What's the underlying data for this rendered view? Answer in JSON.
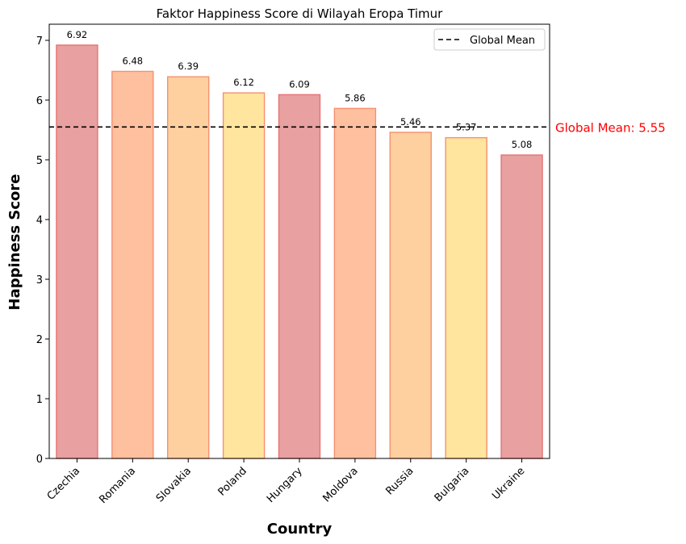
{
  "chart_data": {
    "type": "bar",
    "title": "Faktor Happiness Score di Wilayah Eropa Timur",
    "xlabel": "Country",
    "ylabel": "Happiness Score",
    "categories": [
      "Czechia",
      "Romania",
      "Slovakia",
      "Poland",
      "Hungary",
      "Moldova",
      "Russia",
      "Bulgaria",
      "Ukraine"
    ],
    "values": [
      6.92,
      6.48,
      6.39,
      6.12,
      6.09,
      5.86,
      5.46,
      5.37,
      5.08
    ],
    "value_labels": [
      "6.92",
      "6.48",
      "6.39",
      "6.12",
      "6.09",
      "5.86",
      "5.46",
      "5.37",
      "5.08"
    ],
    "ylim": [
      0,
      7.27
    ],
    "yticks": [
      0,
      1,
      2,
      3,
      4,
      5,
      6,
      7
    ],
    "grid": false,
    "legend": {
      "entries": [
        "Global Mean"
      ],
      "placement": "top-right"
    },
    "reference_line": {
      "value": 5.55,
      "label": "Global Mean",
      "annotation": "Global Mean: 5.55",
      "annotation_color": "#ff0000",
      "style": "dashed",
      "color": "#000000"
    },
    "bar_colors": [
      "#e8a0a0",
      "#ffc09f",
      "#ffd09f",
      "#ffe59e",
      "#e8a0a0",
      "#ffc09f",
      "#ffd09f",
      "#ffe59e",
      "#e8a0a0"
    ],
    "bar_edge_colors": [
      "#e57373",
      "#f59070",
      "#f59070",
      "#f59070",
      "#e57373",
      "#f59070",
      "#f59070",
      "#f59070",
      "#e57373"
    ]
  }
}
